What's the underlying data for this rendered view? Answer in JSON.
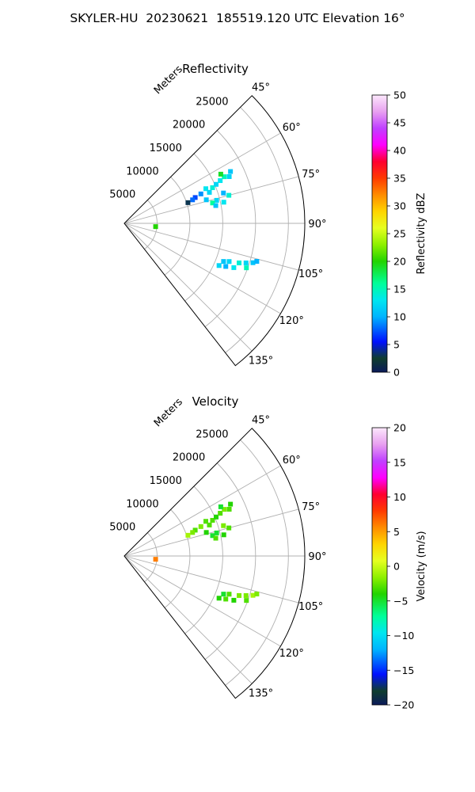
{
  "figure": {
    "title": "SKYLER-HU  20230621  185519.120 UTC Elevation 16°"
  },
  "chart_data": [
    {
      "type": "scatter",
      "title": "Reflectivity",
      "projection": "polar-sector",
      "theta_ticks_deg": [
        45,
        60,
        75,
        90,
        105,
        120,
        135
      ],
      "theta_tick_labels": [
        "45°",
        "60°",
        "75°",
        "90°",
        "105°",
        "120°",
        "135°"
      ],
      "theta_range_deg": [
        45,
        142
      ],
      "radial_label": "Meters",
      "radial_ticks": [
        5000,
        10000,
        15000,
        20000,
        25000
      ],
      "radial_tick_labels": [
        "5000",
        "10000",
        "15000",
        "20000",
        "25000"
      ],
      "rlim": [
        0,
        27500
      ],
      "grid": true,
      "colorbar": {
        "label": "Reflectivity dBZ",
        "range": [
          0,
          50
        ],
        "ticks": [
          0,
          5,
          10,
          15,
          20,
          25,
          30,
          35,
          40,
          45,
          50
        ],
        "tick_labels": [
          "0",
          "5",
          "10",
          "15",
          "20",
          "25",
          "30",
          "35",
          "40",
          "45",
          "50"
        ]
      },
      "series": [
        {
          "points": [
            {
              "theta": 68,
              "r": 14500,
              "value": 14
            },
            {
              "theta": 67,
              "r": 15200,
              "value": 12
            },
            {
              "theta": 66,
              "r": 16000,
              "value": 13
            },
            {
              "theta": 65,
              "r": 16800,
              "value": 15
            },
            {
              "theta": 66,
              "r": 17500,
              "value": 12
            },
            {
              "theta": 64,
              "r": 18000,
              "value": 11
            },
            {
              "theta": 63,
              "r": 16500,
              "value": 19
            },
            {
              "theta": 67,
              "r": 13500,
              "value": 13
            },
            {
              "theta": 69,
              "r": 12500,
              "value": 9
            },
            {
              "theta": 70,
              "r": 11500,
              "value": 7
            },
            {
              "theta": 71,
              "r": 11000,
              "value": 8
            },
            {
              "theta": 72,
              "r": 10200,
              "value": 3
            },
            {
              "theta": 70,
              "r": 13800,
              "value": 12
            },
            {
              "theta": 74,
              "r": 13000,
              "value": 11
            },
            {
              "theta": 76,
              "r": 14500,
              "value": 12
            },
            {
              "theta": 78,
              "r": 15500,
              "value": 13
            },
            {
              "theta": 75,
              "r": 16500,
              "value": 14
            },
            {
              "theta": 73,
              "r": 15800,
              "value": 10
            },
            {
              "theta": 77,
              "r": 13800,
              "value": 16
            },
            {
              "theta": 79,
              "r": 14200,
              "value": 11
            },
            {
              "theta": 96,
              "r": 4800,
              "value": 20
            },
            {
              "theta": 110,
              "r": 17000,
              "value": 12
            },
            {
              "theta": 112,
              "r": 18000,
              "value": 13
            },
            {
              "theta": 109,
              "r": 18500,
              "value": 14
            },
            {
              "theta": 111,
              "r": 16200,
              "value": 11
            },
            {
              "theta": 113,
              "r": 16800,
              "value": 10
            },
            {
              "theta": 108,
              "r": 19500,
              "value": 12
            },
            {
              "theta": 107,
              "r": 20500,
              "value": 11
            },
            {
              "theta": 110,
              "r": 19800,
              "value": 15
            },
            {
              "theta": 114,
              "r": 15800,
              "value": 12
            },
            {
              "theta": 106,
              "r": 21000,
              "value": 10
            }
          ]
        }
      ]
    },
    {
      "type": "scatter",
      "title": "Velocity",
      "projection": "polar-sector",
      "theta_ticks_deg": [
        45,
        60,
        75,
        90,
        105,
        120,
        135
      ],
      "theta_tick_labels": [
        "45°",
        "60°",
        "75°",
        "90°",
        "105°",
        "120°",
        "135°"
      ],
      "theta_range_deg": [
        45,
        142
      ],
      "radial_label": "Meters",
      "radial_ticks": [
        5000,
        10000,
        15000,
        20000,
        25000
      ],
      "radial_tick_labels": [
        "5000",
        "10000",
        "15000",
        "20000",
        "25000"
      ],
      "rlim": [
        0,
        27500
      ],
      "grid": true,
      "colorbar": {
        "label": "Velocity (m/s)",
        "range": [
          -20,
          20
        ],
        "ticks": [
          -20,
          -15,
          -10,
          -5,
          0,
          5,
          10,
          15,
          20
        ],
        "tick_labels": [
          "−20",
          "−15",
          "−10",
          "−5",
          "0",
          "5",
          "10",
          "15",
          "20"
        ]
      },
      "series": [
        {
          "points": [
            {
              "theta": 68,
              "r": 14500,
              "value": -3
            },
            {
              "theta": 67,
              "r": 15200,
              "value": -4
            },
            {
              "theta": 66,
              "r": 16000,
              "value": -3
            },
            {
              "theta": 65,
              "r": 16800,
              "value": -2
            },
            {
              "theta": 66,
              "r": 17500,
              "value": -3
            },
            {
              "theta": 64,
              "r": 18000,
              "value": -4
            },
            {
              "theta": 63,
              "r": 16500,
              "value": -5
            },
            {
              "theta": 67,
              "r": 13500,
              "value": -3
            },
            {
              "theta": 69,
              "r": 12500,
              "value": -2
            },
            {
              "theta": 70,
              "r": 11500,
              "value": -3
            },
            {
              "theta": 71,
              "r": 11000,
              "value": -2
            },
            {
              "theta": 72,
              "r": 10200,
              "value": -1
            },
            {
              "theta": 70,
              "r": 13800,
              "value": -3
            },
            {
              "theta": 74,
              "r": 13000,
              "value": -4
            },
            {
              "theta": 76,
              "r": 14500,
              "value": -5
            },
            {
              "theta": 78,
              "r": 15500,
              "value": -4
            },
            {
              "theta": 75,
              "r": 16500,
              "value": -3
            },
            {
              "theta": 73,
              "r": 15800,
              "value": -2
            },
            {
              "theta": 77,
              "r": 13800,
              "value": -5
            },
            {
              "theta": 79,
              "r": 14200,
              "value": -3
            },
            {
              "theta": 96,
              "r": 4800,
              "value": 6
            },
            {
              "theta": 110,
              "r": 17000,
              "value": -3
            },
            {
              "theta": 112,
              "r": 18000,
              "value": -4
            },
            {
              "theta": 109,
              "r": 18500,
              "value": -2
            },
            {
              "theta": 111,
              "r": 16200,
              "value": -5
            },
            {
              "theta": 113,
              "r": 16800,
              "value": -3
            },
            {
              "theta": 108,
              "r": 19500,
              "value": -2
            },
            {
              "theta": 107,
              "r": 20500,
              "value": -1
            },
            {
              "theta": 110,
              "r": 19800,
              "value": -3
            },
            {
              "theta": 114,
              "r": 15800,
              "value": -4
            },
            {
              "theta": 106,
              "r": 21000,
              "value": -2
            }
          ]
        }
      ]
    }
  ]
}
